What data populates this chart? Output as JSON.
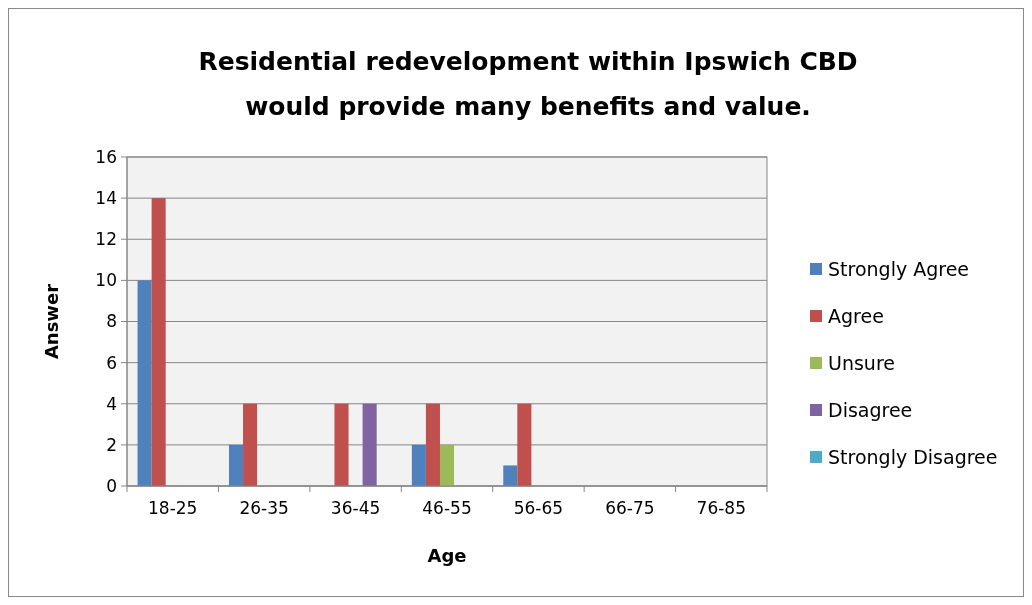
{
  "chart_data": {
    "type": "bar",
    "title": "Residential redevelopment within Ipswich CBD would provide many benefits and value.",
    "xlabel": "Age",
    "ylabel": "Answer",
    "categories": [
      "18-25",
      "26-35",
      "36-45",
      "46-55",
      "56-65",
      "66-75",
      "76-85"
    ],
    "series": [
      {
        "name": "Strongly Agree",
        "color": "#4f81bd",
        "values": [
          10,
          2,
          0,
          2,
          1,
          0,
          0
        ]
      },
      {
        "name": "Agree",
        "color": "#c0504d",
        "values": [
          14,
          4,
          4,
          4,
          4,
          0,
          0
        ]
      },
      {
        "name": "Unsure",
        "color": "#9bbb59",
        "values": [
          0,
          0,
          0,
          2,
          0,
          0,
          0
        ]
      },
      {
        "name": "Disagree",
        "color": "#8064a2",
        "values": [
          0,
          0,
          4,
          0,
          0,
          0,
          0
        ]
      },
      {
        "name": "Strongly Disagree",
        "color": "#4bacc6",
        "values": [
          0,
          0,
          0,
          0,
          0,
          0,
          0
        ]
      }
    ],
    "ylim": [
      0,
      16
    ],
    "yticks": [
      0,
      2,
      4,
      6,
      8,
      10,
      12,
      14,
      16
    ],
    "grid": "y",
    "legend": "right"
  }
}
